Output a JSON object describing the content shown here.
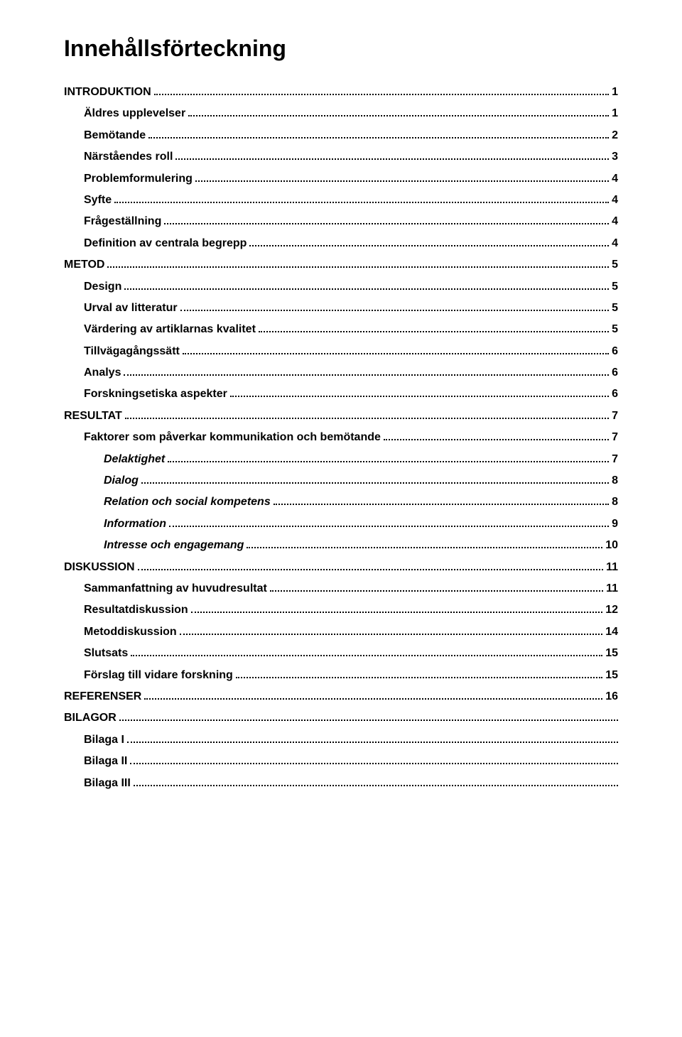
{
  "title": "Innehållsförteckning",
  "toc": [
    {
      "label": "INTRODUKTION",
      "page": "1",
      "level": 1,
      "italic": false
    },
    {
      "label": "Äldres upplevelser",
      "page": "1",
      "level": 2,
      "italic": false
    },
    {
      "label": "Bemötande",
      "page": "2",
      "level": 2,
      "italic": false
    },
    {
      "label": "Närståendes roll",
      "page": "3",
      "level": 2,
      "italic": false
    },
    {
      "label": "Problemformulering",
      "page": "4",
      "level": 2,
      "italic": false
    },
    {
      "label": "Syfte",
      "page": "4",
      "level": 2,
      "italic": false
    },
    {
      "label": "Frågeställning",
      "page": "4",
      "level": 2,
      "italic": false
    },
    {
      "label": "Definition av centrala begrepp",
      "page": "4",
      "level": 2,
      "italic": false
    },
    {
      "label": "METOD",
      "page": "5",
      "level": 1,
      "italic": false
    },
    {
      "label": "Design",
      "page": "5",
      "level": 2,
      "italic": false
    },
    {
      "label": "Urval av litteratur",
      "page": "5",
      "level": 2,
      "italic": false
    },
    {
      "label": "Värdering av artiklarnas kvalitet",
      "page": "5",
      "level": 2,
      "italic": false
    },
    {
      "label": "Tillvägagångssätt",
      "page": "6",
      "level": 2,
      "italic": false
    },
    {
      "label": "Analys",
      "page": "6",
      "level": 2,
      "italic": false
    },
    {
      "label": "Forskningsetiska aspekter",
      "page": "6",
      "level": 2,
      "italic": false
    },
    {
      "label": "RESULTAT",
      "page": "7",
      "level": 1,
      "italic": false
    },
    {
      "label": "Faktorer som påverkar kommunikation och bemötande",
      "page": "7",
      "level": 2,
      "italic": false
    },
    {
      "label": "Delaktighet",
      "page": "7",
      "level": 3,
      "italic": true
    },
    {
      "label": "Dialog",
      "page": "8",
      "level": 3,
      "italic": true
    },
    {
      "label": "Relation och social kompetens",
      "page": "8",
      "level": 3,
      "italic": true
    },
    {
      "label": "Information",
      "page": "9",
      "level": 3,
      "italic": true
    },
    {
      "label": "Intresse och engagemang",
      "page": "10",
      "level": 3,
      "italic": true
    },
    {
      "label": "DISKUSSION",
      "page": "11",
      "level": 1,
      "italic": false
    },
    {
      "label": "Sammanfattning av huvudresultat",
      "page": "11",
      "level": 2,
      "italic": false
    },
    {
      "label": "Resultatdiskussion",
      "page": "12",
      "level": 2,
      "italic": false
    },
    {
      "label": "Metoddiskussion",
      "page": "14",
      "level": 2,
      "italic": false
    },
    {
      "label": "Slutsats",
      "page": "15",
      "level": 2,
      "italic": false
    },
    {
      "label": "Förslag till vidare forskning",
      "page": "15",
      "level": 2,
      "italic": false
    },
    {
      "label": "REFERENSER",
      "page": "16",
      "level": 1,
      "italic": false
    },
    {
      "label": "BILAGOR",
      "page": "",
      "level": 1,
      "italic": false
    },
    {
      "label": "Bilaga I",
      "page": "",
      "level": 2,
      "italic": false
    },
    {
      "label": "Bilaga II",
      "page": "",
      "level": 2,
      "italic": false
    },
    {
      "label": "Bilaga III",
      "page": "",
      "level": 2,
      "italic": false
    }
  ]
}
